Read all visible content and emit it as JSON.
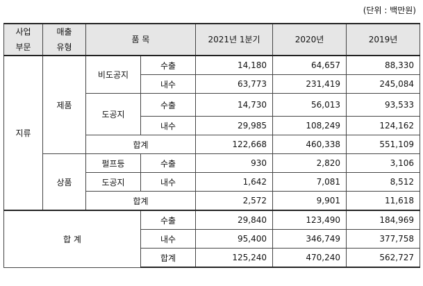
{
  "unit": "(단위 : 백만원)",
  "header": {
    "segment": [
      "사업",
      "부문"
    ],
    "sales_type": [
      "매출",
      "유형"
    ],
    "item": "품 목",
    "col_2021q1": "2021년 1분기",
    "col_2020": "2020년",
    "col_2019": "2019년"
  },
  "segment_label": "지류",
  "products": {
    "type_label": "제품",
    "non_coated": {
      "name": "비도공지",
      "export": {
        "label": "수출",
        "v2021q1": "14,180",
        "v2020": "64,657",
        "v2019": "88,330"
      },
      "domestic": {
        "label": "내수",
        "v2021q1": "63,773",
        "v2020": "231,419",
        "v2019": "245,084"
      }
    },
    "coated": {
      "name": "도공지",
      "export": {
        "label": "수출",
        "v2021q1": "14,730",
        "v2020": "56,013",
        "v2019": "93,533"
      },
      "domestic": {
        "label": "내수",
        "v2021q1": "29,985",
        "v2020": "108,249",
        "v2019": "124,162"
      }
    },
    "subtotal": {
      "label": "합계",
      "v2021q1": "122,668",
      "v2020": "460,338",
      "v2019": "551,109"
    }
  },
  "goods": {
    "type_label": "상품",
    "pulp_row": {
      "item": "펄프등",
      "label": "수출",
      "v2021q1": "930",
      "v2020": "2,820",
      "v2019": "3,106"
    },
    "coated_row": {
      "item": "도공지",
      "label": "내수",
      "v2021q1": "1,642",
      "v2020": "7,081",
      "v2019": "8,512"
    },
    "subtotal": {
      "label": "합계",
      "v2021q1": "2,572",
      "v2020": "9,901",
      "v2019": "11,618"
    }
  },
  "grand_total": {
    "label": "합 계",
    "export": {
      "label": "수출",
      "v2021q1": "29,840",
      "v2020": "123,490",
      "v2019": "184,969"
    },
    "domestic": {
      "label": "내수",
      "v2021q1": "95,400",
      "v2020": "346,749",
      "v2019": "377,758"
    },
    "total": {
      "label": "합계",
      "v2021q1": "125,240",
      "v2020": "470,240",
      "v2019": "562,727"
    }
  }
}
